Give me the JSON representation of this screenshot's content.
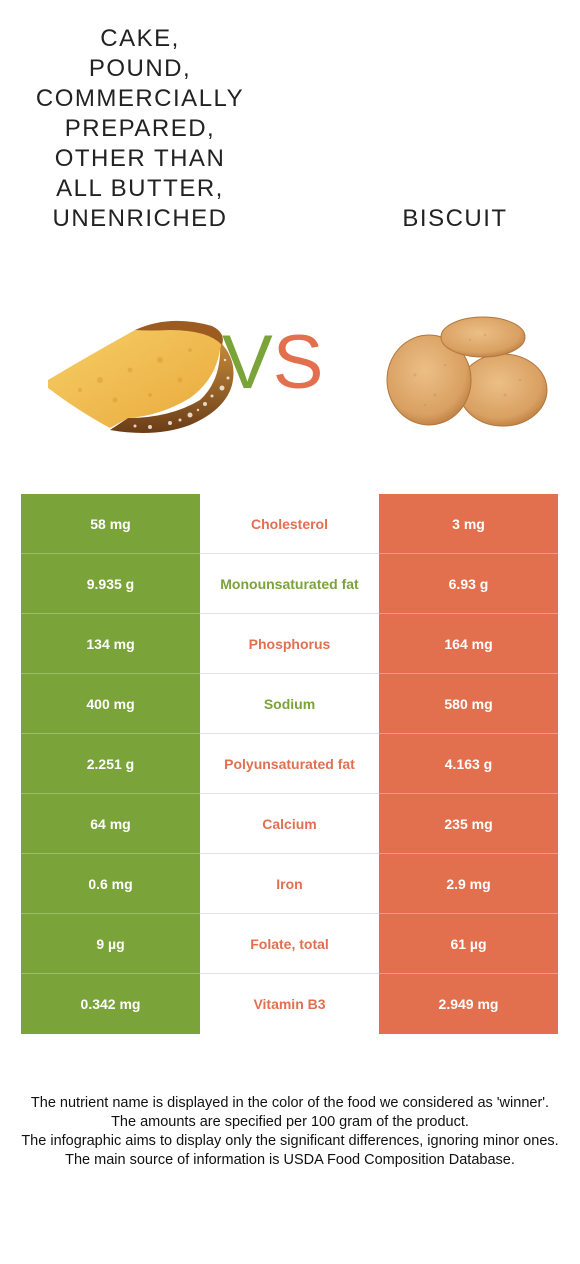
{
  "food_left": {
    "name_lines": [
      "CAKE,",
      "POUND,",
      "COMMERCIALLY",
      "PREPARED,",
      "OTHER THAN",
      "ALL BUTTER,",
      "UNENRICHED"
    ],
    "image_icon": "cake-slice-image"
  },
  "food_right": {
    "name": "BISCUIT",
    "image_icon": "biscuits-image"
  },
  "vs": {
    "v": "V",
    "s": "S"
  },
  "colors": {
    "left": "#7aa33a",
    "right": "#e2704f"
  },
  "rows": [
    {
      "left": "58 mg",
      "nutrient": "Cholesterol",
      "right": "3 mg",
      "winner": "right"
    },
    {
      "left": "9.935 g",
      "nutrient": "Monounsaturated fat",
      "right": "6.93 g",
      "winner": "left"
    },
    {
      "left": "134 mg",
      "nutrient": "Phosphorus",
      "right": "164 mg",
      "winner": "right"
    },
    {
      "left": "400 mg",
      "nutrient": "Sodium",
      "right": "580 mg",
      "winner": "left"
    },
    {
      "left": "2.251 g",
      "nutrient": "Polyunsaturated fat",
      "right": "4.163 g",
      "winner": "right"
    },
    {
      "left": "64 mg",
      "nutrient": "Calcium",
      "right": "235 mg",
      "winner": "right"
    },
    {
      "left": "0.6 mg",
      "nutrient": "Iron",
      "right": "2.9 mg",
      "winner": "right"
    },
    {
      "left": "9 µg",
      "nutrient": "Folate, total",
      "right": "61 µg",
      "winner": "right"
    },
    {
      "left": "0.342 mg",
      "nutrient": "Vitamin B3",
      "right": "2.949 mg",
      "winner": "right"
    }
  ],
  "footer": [
    "The nutrient name is displayed in the color of the food we considered as 'winner'.",
    "The amounts are specified per 100 gram of the product.",
    "The infographic aims to display only the significant differences, ignoring minor ones.",
    "The main source of information is USDA Food Composition Database."
  ]
}
